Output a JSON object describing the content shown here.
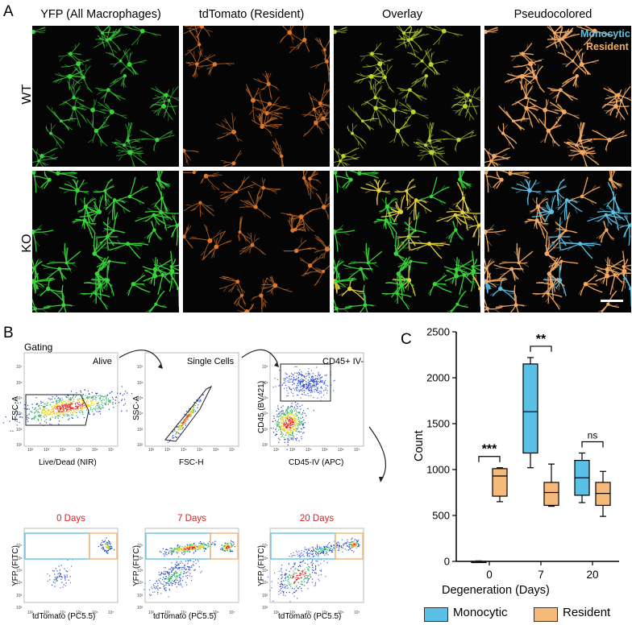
{
  "panel_a": {
    "letter": "A",
    "columns": [
      "YFP (All Macrophages)",
      "tdTomato (Resident)",
      "Overlay",
      "Pseudocolored"
    ],
    "rows": [
      "WT",
      "KO"
    ],
    "legend": {
      "monocytic": "Monocytic",
      "resident": "Resident"
    },
    "colors": {
      "yfp": "#39d53a",
      "tdtomato": "#e0782a",
      "overlay": "#b8d830",
      "resident": "#f4aa62",
      "monocytic": "#5dc2e6"
    }
  },
  "panel_b": {
    "letter": "B",
    "gating_label": "Gating",
    "plots": [
      {
        "gate": "Alive",
        "xlabel": "Live/Dead (NIR)",
        "ylabel": "FSC-A"
      },
      {
        "gate": "Single Cells",
        "xlabel": "FSC-H",
        "ylabel": "SSC-A"
      },
      {
        "gate": "CD45+ IV-",
        "xlabel": "CD45-IV (APC)",
        "ylabel": "CD45 (BV421)"
      }
    ],
    "days": [
      "0 Days",
      "7 Days",
      "20 Days"
    ],
    "bottom_xlabel": "tdTomato (PC5.5)",
    "bottom_ylabel": "YFP (FITC)",
    "tick_labels": [
      "10²",
      "10³",
      "10⁴",
      "10⁵",
      "10⁶",
      "10⁷"
    ],
    "colors": {
      "monocytic_gate": "#6fc6e8",
      "resident_gate": "#f5b97a",
      "day_title": "#e02020"
    }
  },
  "panel_c": {
    "letter": "C",
    "chart_data": {
      "type": "boxplot",
      "xlabel": "Degeneration (Days)",
      "ylabel": "Count",
      "categories": [
        "0",
        "7",
        "20"
      ],
      "ylim": [
        0,
        2500
      ],
      "yticks": [
        0,
        500,
        1000,
        1500,
        2000,
        2500
      ],
      "series": [
        {
          "name": "Monocytic",
          "color": "#5bc0e6",
          "boxes": [
            {
              "min": 0,
              "q1": 0,
              "median": 0,
              "q3": 0,
              "max": 5
            },
            {
              "min": 1020,
              "q1": 1180,
              "median": 1630,
              "q3": 2150,
              "max": 2220
            },
            {
              "min": 640,
              "q1": 720,
              "median": 910,
              "q3": 1100,
              "max": 1180
            }
          ]
        },
        {
          "name": "Resident",
          "color": "#f5b97a",
          "boxes": [
            {
              "min": 650,
              "q1": 710,
              "median": 930,
              "q3": 1010,
              "max": 1020
            },
            {
              "min": 600,
              "q1": 610,
              "median": 750,
              "q3": 860,
              "max": 1060
            },
            {
              "min": 490,
              "q1": 610,
              "median": 740,
              "q3": 860,
              "max": 980
            }
          ]
        }
      ],
      "significance": [
        "***",
        "**",
        "ns"
      ],
      "legend": [
        "Monocytic",
        "Resident"
      ]
    }
  }
}
